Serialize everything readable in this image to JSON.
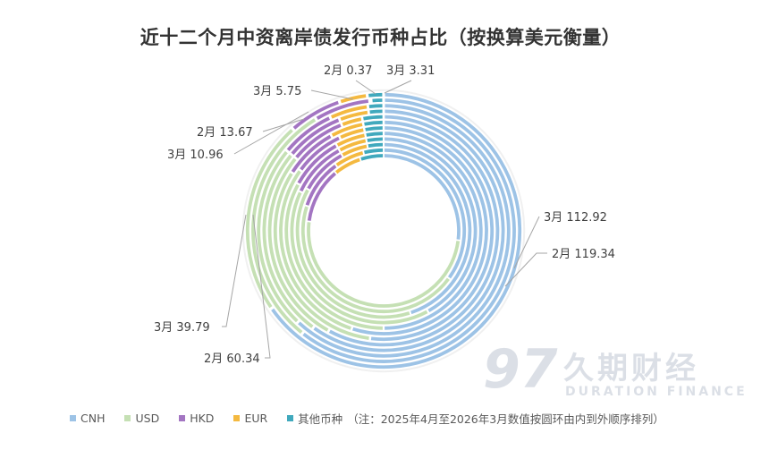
{
  "chart_data": {
    "type": "pie",
    "variant": "multi-ring donut",
    "title": "近十二个月中资离岸债发行币种占比（按换算美元衡量）",
    "categories": [
      "CNH",
      "USD",
      "HKD",
      "EUR",
      "其他币种"
    ],
    "colors": [
      "#9dc3e6",
      "#c5e0b4",
      "#a375c2",
      "#f4b940",
      "#40a9bd"
    ],
    "ring_order_note": "（注：2025年4月至2026年3月数值按圆环由内到外顺序排列）",
    "rings": [
      {
        "month": "2025-04",
        "values": [
          27,
          50,
          12,
          6,
          5
        ]
      },
      {
        "month": "2025-05",
        "values": [
          35,
          45,
          10,
          6,
          4
        ]
      },
      {
        "month": "2025-06",
        "values": [
          45,
          38,
          9,
          5,
          3
        ]
      },
      {
        "month": "2025-07",
        "values": [
          42,
          40,
          10,
          5,
          3
        ]
      },
      {
        "month": "2025-08",
        "values": [
          50,
          33,
          9,
          5,
          3
        ]
      },
      {
        "month": "2025-09",
        "values": [
          55,
          30,
          8,
          4,
          3
        ]
      },
      {
        "month": "2025-10",
        "values": [
          52,
          32,
          8,
          5,
          3
        ]
      },
      {
        "month": "2025-11",
        "values": [
          58,
          28,
          8,
          3,
          3
        ]
      },
      {
        "month": "2025-12",
        "values": [
          60,
          26,
          8,
          4,
          2
        ]
      },
      {
        "month": "2026-01",
        "values": [
          62,
          24,
          7,
          5,
          2
        ]
      },
      {
        "month": "2026-02",
        "values": [
          119.34,
          60.34,
          13.67,
          0.37,
          3
        ]
      },
      {
        "month": "2026-03",
        "values": [
          112.92,
          39.79,
          10.96,
          5.75,
          3.31
        ]
      }
    ],
    "data_labels": [
      {
        "text": "2月 0.37"
      },
      {
        "text": "3月 3.31"
      },
      {
        "text": "3月 5.75"
      },
      {
        "text": "2月 13.67"
      },
      {
        "text": "3月 10.96"
      },
      {
        "text": "3月 112.92"
      },
      {
        "text": "2月 119.34"
      },
      {
        "text": "3月 39.79"
      },
      {
        "text": "2月 60.34"
      }
    ],
    "legend_position": "bottom"
  },
  "watermark": {
    "cn": "久期财经",
    "en": "DURATION FINANCE",
    "logo": "97"
  }
}
